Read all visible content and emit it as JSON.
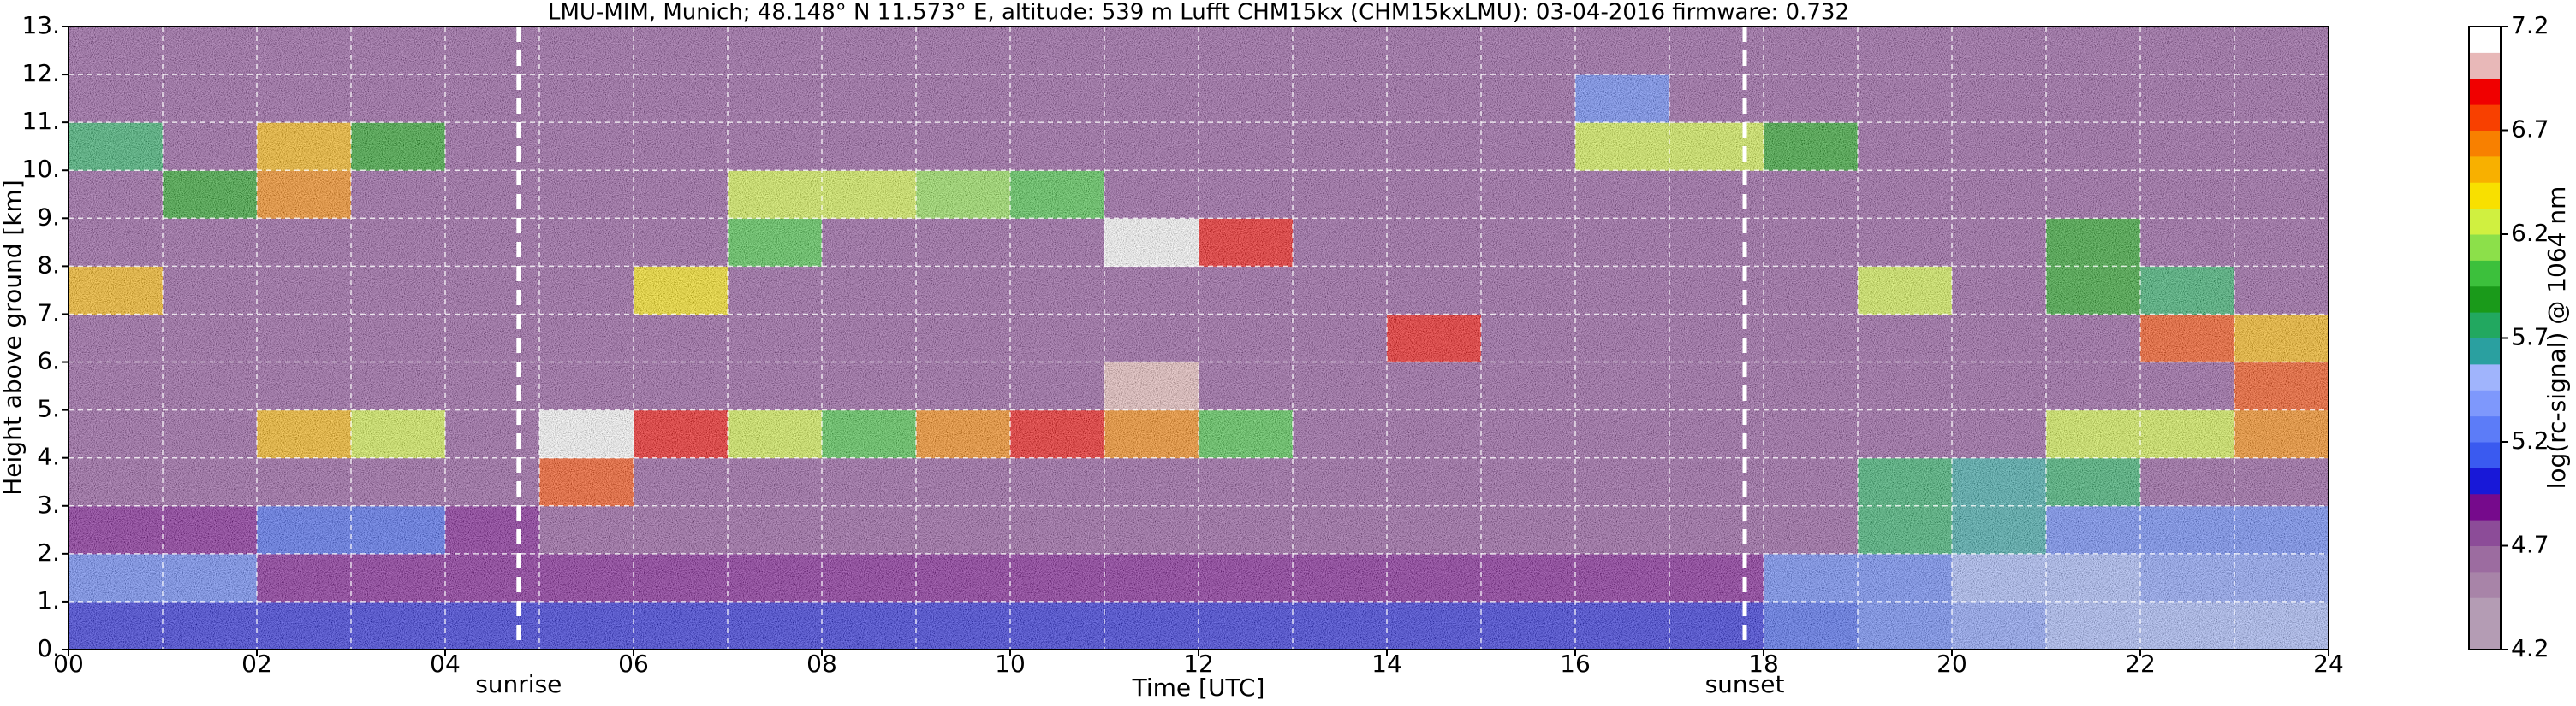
{
  "chart_data": {
    "type": "heatmap",
    "title": "LMU-MIM, Munich; 48.148° N 11.573° E, altitude: 539 m    Lufft CHM15kx (CHM15kxLMU): 03-04-2016    firmware: 0.732",
    "x_label": "Time [UTC]",
    "y_label": "Height above ground [km]",
    "xlim": [
      0,
      24
    ],
    "ylim": [
      0,
      13
    ],
    "xticks": [
      {
        "value": 0,
        "label": "00"
      },
      {
        "value": 2,
        "label": "02"
      },
      {
        "value": 4,
        "label": "04"
      },
      {
        "value": 6,
        "label": "06"
      },
      {
        "value": 8,
        "label": "08"
      },
      {
        "value": 10,
        "label": "10"
      },
      {
        "value": 12,
        "label": "12"
      },
      {
        "value": 14,
        "label": "14"
      },
      {
        "value": 16,
        "label": "16"
      },
      {
        "value": 18,
        "label": "18"
      },
      {
        "value": 20,
        "label": "20"
      },
      {
        "value": 22,
        "label": "22"
      },
      {
        "value": 24,
        "label": "24"
      }
    ],
    "xminorticks": [
      1,
      3,
      5,
      7,
      9,
      11,
      13,
      15,
      17,
      19,
      21,
      23
    ],
    "yticks": [
      {
        "value": 0,
        "label": "0."
      },
      {
        "value": 1,
        "label": "1."
      },
      {
        "value": 2,
        "label": "2."
      },
      {
        "value": 3,
        "label": "3."
      },
      {
        "value": 4,
        "label": "4."
      },
      {
        "value": 5,
        "label": "5."
      },
      {
        "value": 6,
        "label": "6."
      },
      {
        "value": 7,
        "label": "7."
      },
      {
        "value": 8,
        "label": "8."
      },
      {
        "value": 9,
        "label": "9."
      },
      {
        "value": 10,
        "label": "10."
      },
      {
        "value": 11,
        "label": "11."
      },
      {
        "value": 12,
        "label": "12."
      },
      {
        "value": 13,
        "label": "13."
      }
    ],
    "grid": true,
    "annotations": [
      {
        "label": "sunrise",
        "x": 4.78
      },
      {
        "label": "sunset",
        "x": 17.8
      }
    ],
    "x_bins": [
      0,
      1,
      2,
      3,
      4,
      5,
      6,
      7,
      8,
      9,
      10,
      11,
      12,
      13,
      14,
      15,
      16,
      17,
      18,
      19,
      20,
      21,
      22,
      23,
      24
    ],
    "y_bins": [
      0,
      1,
      2,
      3,
      4,
      5,
      6,
      7,
      8,
      9,
      10,
      11,
      12,
      13
    ],
    "z": [
      [
        5.0,
        5.0,
        5.0,
        5.0,
        5.0,
        5.0,
        5.0,
        5.0,
        5.0,
        5.0,
        5.0,
        5.0,
        5.0,
        5.0,
        5.0,
        5.0,
        5.0,
        5.0,
        5.1,
        5.2,
        5.4,
        5.5,
        5.5,
        5.5
      ],
      [
        5.3,
        5.2,
        4.9,
        4.9,
        4.9,
        4.9,
        4.9,
        4.9,
        4.9,
        4.9,
        4.9,
        4.9,
        4.9,
        4.9,
        4.9,
        4.9,
        4.9,
        4.9,
        5.2,
        5.3,
        5.5,
        5.5,
        5.4,
        5.4
      ],
      [
        4.9,
        4.9,
        5.1,
        5.1,
        4.9,
        4.8,
        4.8,
        4.8,
        4.8,
        4.8,
        4.8,
        4.8,
        4.8,
        4.8,
        4.8,
        4.8,
        4.8,
        4.8,
        4.8,
        5.7,
        5.6,
        5.3,
        5.3,
        5.3
      ],
      [
        4.8,
        4.8,
        4.8,
        4.8,
        4.8,
        6.8,
        4.8,
        4.8,
        4.8,
        4.8,
        4.8,
        4.8,
        4.8,
        4.8,
        4.8,
        4.8,
        4.8,
        4.8,
        4.8,
        5.8,
        5.6,
        5.7,
        4.8,
        4.8
      ],
      [
        4.8,
        4.8,
        6.5,
        6.3,
        4.8,
        7.1,
        6.9,
        6.2,
        6.0,
        6.6,
        6.9,
        6.6,
        6.0,
        4.8,
        4.8,
        4.8,
        4.8,
        4.8,
        4.8,
        4.8,
        4.8,
        6.2,
        6.3,
        6.6
      ],
      [
        4.8,
        4.8,
        4.8,
        4.8,
        4.8,
        4.8,
        4.8,
        4.8,
        4.8,
        4.8,
        4.8,
        7.0,
        4.8,
        4.8,
        4.8,
        4.8,
        4.8,
        4.8,
        4.8,
        4.8,
        4.8,
        4.8,
        4.8,
        6.7
      ],
      [
        4.8,
        4.8,
        4.8,
        4.8,
        4.8,
        4.8,
        4.8,
        4.8,
        4.8,
        4.8,
        4.8,
        4.8,
        4.8,
        4.8,
        6.9,
        4.8,
        4.8,
        4.8,
        4.8,
        4.8,
        4.8,
        4.8,
        6.8,
        6.5
      ],
      [
        6.5,
        4.8,
        4.8,
        4.8,
        4.8,
        4.8,
        6.4,
        4.8,
        4.8,
        4.8,
        4.8,
        4.8,
        4.8,
        4.8,
        4.8,
        4.8,
        4.8,
        4.8,
        4.8,
        6.3,
        4.8,
        5.9,
        5.8,
        4.8
      ],
      [
        4.8,
        4.8,
        4.8,
        4.8,
        4.8,
        4.8,
        4.8,
        6.0,
        4.8,
        4.8,
        4.8,
        7.1,
        6.9,
        4.8,
        4.8,
        4.8,
        4.8,
        4.8,
        4.8,
        4.8,
        4.8,
        5.9,
        4.8,
        4.8
      ],
      [
        4.8,
        5.9,
        6.6,
        4.8,
        4.8,
        4.8,
        4.8,
        6.2,
        6.3,
        6.1,
        6.0,
        4.8,
        4.8,
        4.8,
        4.8,
        4.8,
        4.8,
        4.8,
        4.8,
        4.8,
        4.8,
        4.8,
        4.8,
        4.8
      ],
      [
        5.8,
        4.8,
        6.5,
        5.9,
        4.8,
        4.8,
        4.8,
        4.8,
        4.8,
        4.8,
        4.8,
        4.8,
        4.8,
        4.8,
        4.8,
        4.8,
        6.3,
        6.2,
        5.9,
        4.8,
        4.8,
        4.8,
        4.8,
        4.8
      ],
      [
        4.8,
        4.8,
        4.8,
        4.8,
        4.8,
        4.8,
        4.8,
        4.8,
        4.8,
        4.8,
        4.8,
        4.8,
        4.8,
        4.8,
        4.8,
        4.8,
        5.2,
        4.8,
        4.8,
        4.8,
        4.8,
        4.8,
        4.8,
        4.8
      ],
      [
        4.8,
        4.8,
        4.8,
        4.8,
        4.8,
        4.8,
        4.8,
        4.8,
        4.8,
        4.8,
        4.8,
        4.8,
        4.8,
        4.8,
        4.8,
        4.8,
        4.8,
        4.8,
        4.8,
        4.8,
        4.8,
        4.8,
        4.8,
        4.8
      ]
    ],
    "colorbar": {
      "label": "log(rc-signal) @ 1064 nm",
      "clim": [
        4.2,
        7.2
      ],
      "ticks": [
        4.2,
        4.7,
        5.2,
        5.7,
        6.2,
        6.7,
        7.2
      ],
      "colors": [
        "#b49cb4",
        "#b49cb4",
        "#a884a8",
        "#9c6ca0",
        "#8c4c98",
        "#760a8c",
        "#1818d8",
        "#3a5af0",
        "#5c7cf8",
        "#7e98fc",
        "#a0b4fc",
        "#2aa0a0",
        "#22a860",
        "#1a9a1a",
        "#3cc03c",
        "#8ce04a",
        "#d0f040",
        "#f8e000",
        "#f8b000",
        "#f88000",
        "#f84000",
        "#f00000",
        "#e8b8b8",
        "#ffffff"
      ]
    }
  }
}
